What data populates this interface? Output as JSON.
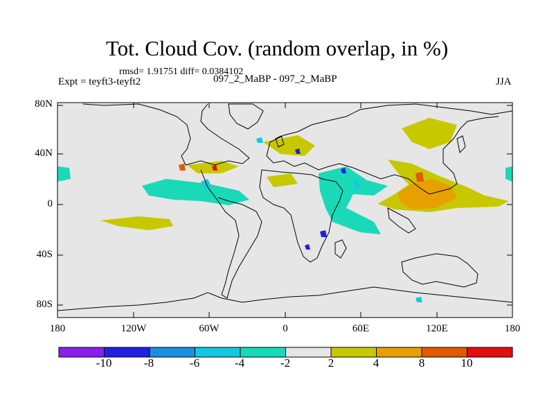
{
  "title": "Tot. Cloud Cov. (random overlap, in %)",
  "stats": "rmsd= 1.91751 diff= 0.0384102",
  "experiment": "Expt = teyft3-teyft2",
  "center_label": "097_2_MaBP - 097_2_MaBP",
  "season": "JJA",
  "lat_ticks": [
    "80N",
    "40N",
    "0",
    "40S",
    "80S"
  ],
  "lon_ticks": [
    "180",
    "120W",
    "60W",
    "0",
    "60E",
    "120E",
    "180"
  ],
  "colorbar": {
    "tick_labels": [
      "-10",
      "-8",
      "-6",
      "-4",
      "-2",
      "2",
      "4",
      "8",
      "10"
    ],
    "colors": [
      "#8a1fe8",
      "#2020e0",
      "#1a8fe0",
      "#14c8e0",
      "#19d9b8",
      "#e6e6e6",
      "#c8c800",
      "#e6a000",
      "#e05a00",
      "#e01010"
    ]
  },
  "map": {
    "background_color": "#e6e6e6"
  }
}
